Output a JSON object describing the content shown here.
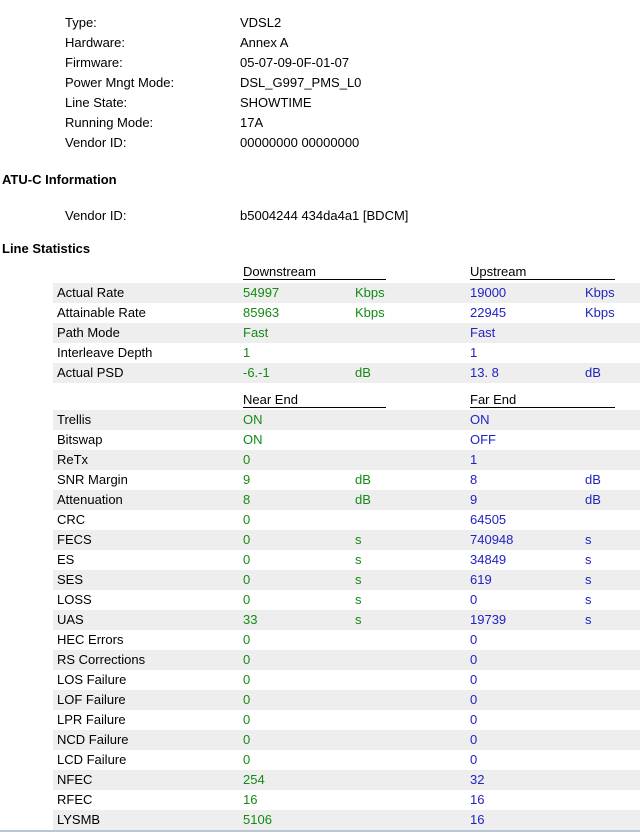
{
  "colors": {
    "green": "#148a14",
    "blue": "#2222c2",
    "stripe": "#eeeeee",
    "text": "#000000",
    "line": "#b9c6d8"
  },
  "device_info": {
    "rows": [
      {
        "label": "Type:",
        "value": "VDSL2"
      },
      {
        "label": "Hardware:",
        "value": "Annex A"
      },
      {
        "label": "Firmware:",
        "value": "05-07-09-0F-01-07"
      },
      {
        "label": "Power Mngt Mode:",
        "value": "DSL_G997_PMS_L0"
      },
      {
        "label": "Line State:",
        "value": "SHOWTIME"
      },
      {
        "label": "Running Mode:",
        "value": "17A"
      },
      {
        "label": "Vendor ID:",
        "value": "00000000 00000000"
      }
    ]
  },
  "atuc": {
    "heading": "ATU-C Information",
    "rows": [
      {
        "label": "Vendor ID:",
        "value": "b5004244 434da4a1 [BDCM]"
      }
    ]
  },
  "line_stats": {
    "heading": "Line Statistics",
    "table1": {
      "col1_header": "Downstream",
      "col2_header": "Upstream",
      "rows": [
        {
          "label": "Actual Rate",
          "v1": "54997",
          "u1": "Kbps",
          "v2": "19000",
          "u2": "Kbps"
        },
        {
          "label": "Attainable Rate",
          "v1": "85963",
          "u1": "Kbps",
          "v2": "22945",
          "u2": "Kbps"
        },
        {
          "label": "Path Mode",
          "v1": "Fast",
          "u1": "",
          "v2": "Fast",
          "u2": ""
        },
        {
          "label": "Interleave Depth",
          "v1": "1",
          "u1": "",
          "v2": "1",
          "u2": ""
        },
        {
          "label": "Actual PSD",
          "v1": "-6.-1",
          "u1": "dB",
          "v2": "13. 8",
          "u2": "dB"
        }
      ]
    },
    "table2": {
      "col1_header": "Near End",
      "col2_header": "Far End",
      "rows": [
        {
          "label": "Trellis",
          "v1": "ON",
          "u1": "",
          "v2": "ON",
          "u2": ""
        },
        {
          "label": "Bitswap",
          "v1": "ON",
          "u1": "",
          "v2": "OFF",
          "u2": ""
        },
        {
          "label": "ReTx",
          "v1": "0",
          "u1": "",
          "v2": "1",
          "u2": ""
        },
        {
          "label": "SNR Margin",
          "v1": "9",
          "u1": "dB",
          "v2": "8",
          "u2": "dB"
        },
        {
          "label": "Attenuation",
          "v1": "8",
          "u1": "dB",
          "v2": "9",
          "u2": "dB"
        },
        {
          "label": "CRC",
          "v1": "0",
          "u1": "",
          "v2": "64505",
          "u2": ""
        },
        {
          "label": "FECS",
          "v1": "0",
          "u1": "s",
          "v2": "740948",
          "u2": "s"
        },
        {
          "label": "ES",
          "v1": "0",
          "u1": "s",
          "v2": "34849",
          "u2": "s"
        },
        {
          "label": "SES",
          "v1": "0",
          "u1": "s",
          "v2": "619",
          "u2": "s"
        },
        {
          "label": "LOSS",
          "v1": "0",
          "u1": "s",
          "v2": "0",
          "u2": "s"
        },
        {
          "label": "UAS",
          "v1": "33",
          "u1": "s",
          "v2": "19739",
          "u2": "s"
        },
        {
          "label": "HEC Errors",
          "v1": "0",
          "u1": "",
          "v2": "0",
          "u2": ""
        },
        {
          "label": "RS Corrections",
          "v1": "0",
          "u1": "",
          "v2": "0",
          "u2": ""
        },
        {
          "label": "LOS Failure",
          "v1": "0",
          "u1": "",
          "v2": "0",
          "u2": ""
        },
        {
          "label": "LOF Failure",
          "v1": "0",
          "u1": "",
          "v2": "0",
          "u2": ""
        },
        {
          "label": "LPR Failure",
          "v1": "0",
          "u1": "",
          "v2": "0",
          "u2": ""
        },
        {
          "label": "NCD Failure",
          "v1": "0",
          "u1": "",
          "v2": "0",
          "u2": ""
        },
        {
          "label": "LCD Failure",
          "v1": "0",
          "u1": "",
          "v2": "0",
          "u2": ""
        },
        {
          "label": "NFEC",
          "v1": "254",
          "u1": "",
          "v2": "32",
          "u2": ""
        },
        {
          "label": "RFEC",
          "v1": "16",
          "u1": "",
          "v2": "16",
          "u2": ""
        },
        {
          "label": "LYSMB",
          "v1": "5106",
          "u1": "",
          "v2": "16",
          "u2": ""
        }
      ]
    }
  }
}
